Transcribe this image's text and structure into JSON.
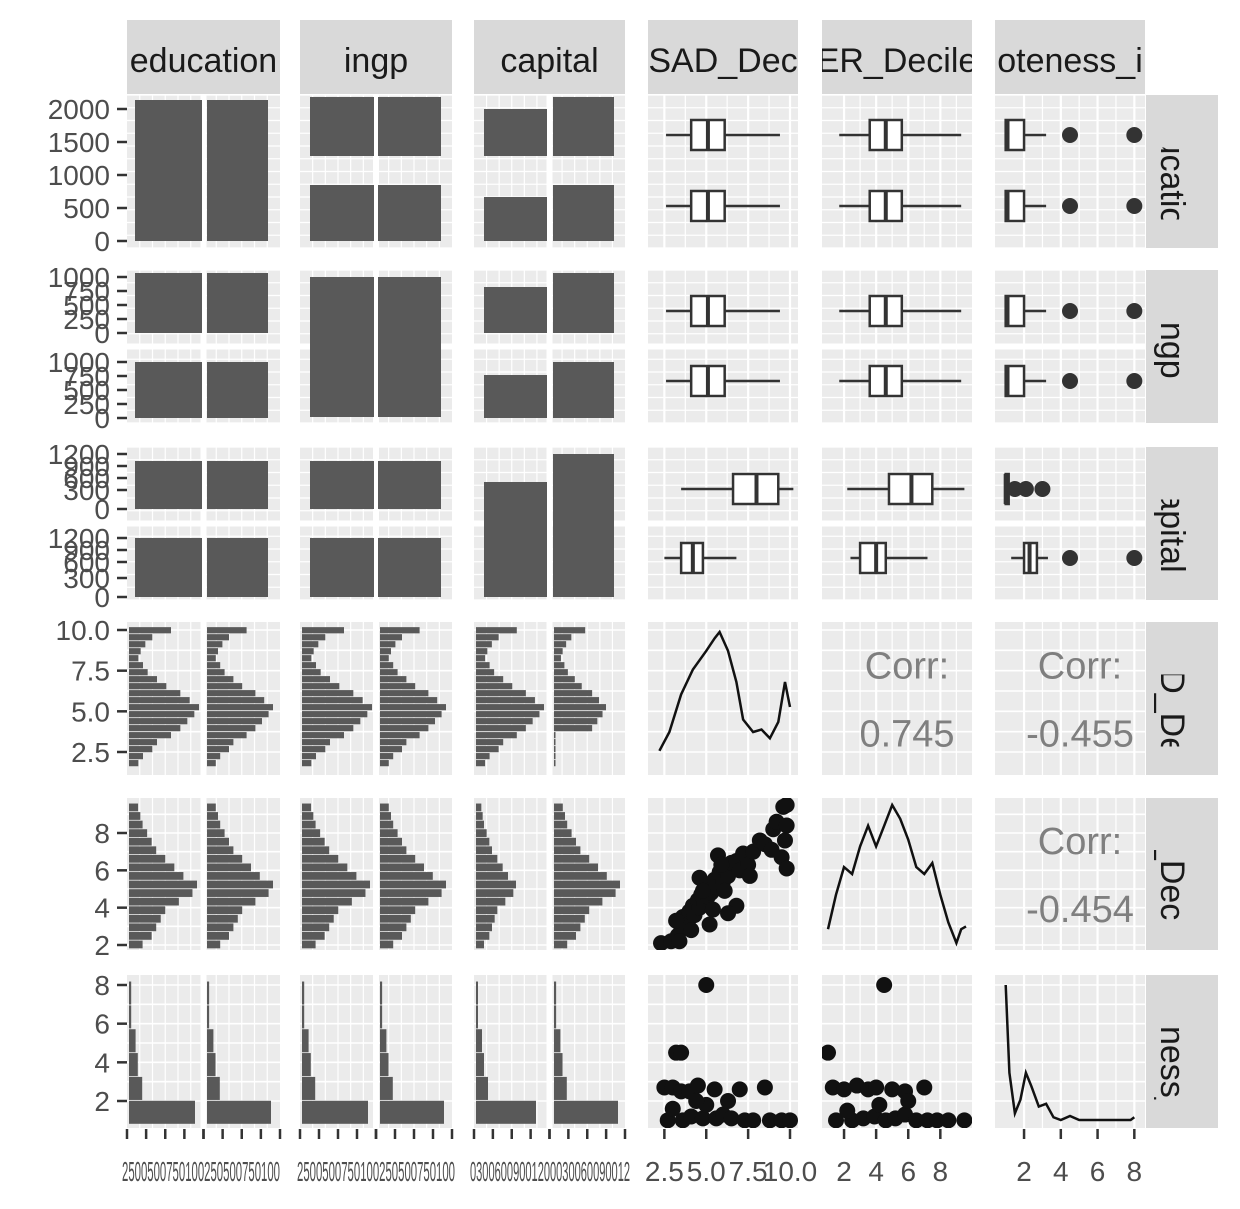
{
  "chart_data": {
    "type": "scatter-matrix",
    "variables": [
      "education",
      "ingp",
      "capital",
      "SAD_Decile",
      "ER_Decile",
      "remoteness_index"
    ],
    "strip_labels": {
      "columns": [
        "education",
        "ingp",
        "capital",
        "SAD_Dec",
        "ER_Decile",
        "oteness_i"
      ],
      "rows": [
        "education",
        "ingp",
        "capital",
        "SAD_Dec",
        "ER_Decile",
        "oteness_i"
      ]
    },
    "y_axis": {
      "education": [
        "2000",
        "1500",
        "1000",
        "500",
        "0"
      ],
      "ingp_upper": [
        "1000",
        "750",
        "500",
        "250",
        "0"
      ],
      "ingp_lower": [
        "1000",
        "750",
        "500",
        "250",
        "0"
      ],
      "capital_upper": [
        "1200",
        "900",
        "600",
        "300",
        "0"
      ],
      "capital_lower": [
        "1200",
        "900",
        "600",
        "300",
        "0"
      ],
      "SAD_Decile": [
        "10.0",
        "7.5",
        "5.0",
        "2.5"
      ],
      "ER_Decile": [
        "8",
        "6",
        "4",
        "2"
      ],
      "remoteness": [
        "8",
        "6",
        "4",
        "2"
      ]
    },
    "x_axis": {
      "col1": [
        "2500",
        "500",
        "750",
        "1000",
        "250",
        "500",
        "750",
        "1000"
      ],
      "col2": [
        "2500",
        "500",
        "750",
        "1000",
        "250",
        "500",
        "750",
        "1000"
      ],
      "col3": [
        "0",
        "300",
        "600",
        "900",
        "1200",
        "0",
        "300",
        "600",
        "900",
        "1200"
      ],
      "SAD_Decile": [
        "2.5",
        "5.0",
        "7.5",
        "10.0"
      ],
      "ER_Decile": [
        "2",
        "4",
        "6",
        "8"
      ],
      "remoteness": [
        "2",
        "4",
        "6",
        "8"
      ]
    },
    "x_axis_rendered": {
      "col1": "2500500750100250500750100",
      "col2": "2500500750100250500750100",
      "col3": "03006009001200030060090012",
      "col4": "2.5 5.0 7.5 10.0",
      "col5": "2 4 6 8",
      "col6": "2 4 6 8"
    },
    "bar_counts": {
      "education_vs_education": [
        2100,
        2100
      ],
      "education_by_ingp": [
        [
          900,
          900
        ],
        [
          900,
          900
        ]
      ],
      "education_by_capital": [
        [
          660,
          880
        ],
        [
          1000,
          1320
        ]
      ]
    },
    "correlations": [
      {
        "pair": [
          "SAD_Decile",
          "ER_Decile"
        ],
        "label": "Corr:",
        "value": "0.745"
      },
      {
        "pair": [
          "SAD_Decile",
          "remoteness_index"
        ],
        "label": "Corr:",
        "value": "-0.455"
      },
      {
        "pair": [
          "ER_Decile",
          "remoteness_index"
        ],
        "label": "Corr:",
        "value": "-0.454"
      }
    ],
    "box_stats": {
      "SAD_by_education": [
        [
          2.6,
          4.1,
          5.1,
          6.1,
          9.4
        ],
        [
          2.6,
          4.1,
          5.1,
          6.1,
          9.4
        ]
      ],
      "ER_by_education": [
        [
          1.7,
          3.6,
          4.6,
          5.6,
          9.3
        ],
        [
          1.7,
          3.6,
          4.6,
          5.6,
          9.3
        ]
      ],
      "rem_by_education": [
        [
          1.0,
          1.0,
          1.1,
          2.0,
          3.2,
          [
            4.5,
            8.0
          ]
        ],
        [
          1.0,
          1.0,
          1.1,
          2.0,
          3.2,
          [
            4.5,
            8.0
          ]
        ]
      ],
      "SAD_by_capital": [
        [
          3.5,
          6.6,
          8.0,
          9.3,
          10.2
        ],
        [
          2.5,
          3.5,
          4.2,
          4.8,
          6.8
        ]
      ],
      "ER_by_capital": [
        [
          2.2,
          4.8,
          6.2,
          7.5,
          9.5
        ],
        [
          2.4,
          3.0,
          4.0,
          4.6,
          7.2
        ]
      ],
      "rem_by_capital": [
        [
          1.0,
          1.0,
          1.0,
          1.1,
          1.1,
          [
            1.5,
            2.1,
            3.0
          ]
        ],
        [
          1.3,
          2.0,
          2.3,
          2.7,
          3.3,
          [
            4.5,
            8.0
          ]
        ]
      ]
    },
    "density_SAD": [
      [
        2.2,
        0.05
      ],
      [
        2.8,
        0.2
      ],
      [
        3.5,
        0.5
      ],
      [
        4.2,
        0.7
      ],
      [
        5.0,
        0.85
      ],
      [
        5.5,
        0.95
      ],
      [
        5.8,
        1.0
      ],
      [
        6.3,
        0.85
      ],
      [
        6.8,
        0.6
      ],
      [
        7.2,
        0.3
      ],
      [
        7.8,
        0.2
      ],
      [
        8.3,
        0.22
      ],
      [
        8.8,
        0.15
      ],
      [
        9.3,
        0.28
      ],
      [
        9.7,
        0.6
      ],
      [
        10.0,
        0.4
      ]
    ],
    "density_ER": [
      [
        1.0,
        0.1
      ],
      [
        1.5,
        0.35
      ],
      [
        2.0,
        0.55
      ],
      [
        2.5,
        0.5
      ],
      [
        3.0,
        0.7
      ],
      [
        3.5,
        0.85
      ],
      [
        4.0,
        0.7
      ],
      [
        4.5,
        0.85
      ],
      [
        5.0,
        1.0
      ],
      [
        5.5,
        0.9
      ],
      [
        6.0,
        0.75
      ],
      [
        6.5,
        0.55
      ],
      [
        7.0,
        0.5
      ],
      [
        7.5,
        0.58
      ],
      [
        8.0,
        0.35
      ],
      [
        8.5,
        0.15
      ],
      [
        9.0,
        0.0
      ],
      [
        9.3,
        0.1
      ],
      [
        9.6,
        0.12
      ]
    ],
    "density_remoteness": [
      [
        1.0,
        1.0
      ],
      [
        1.2,
        0.35
      ],
      [
        1.5,
        0.05
      ],
      [
        1.8,
        0.15
      ],
      [
        2.1,
        0.35
      ],
      [
        2.4,
        0.25
      ],
      [
        2.8,
        0.1
      ],
      [
        3.2,
        0.12
      ],
      [
        3.6,
        0.02
      ],
      [
        4.0,
        0.0
      ],
      [
        4.5,
        0.03
      ],
      [
        5.0,
        0.0
      ],
      [
        6.0,
        0.0
      ],
      [
        7.0,
        0.0
      ],
      [
        7.8,
        0.0
      ],
      [
        8.0,
        0.02
      ]
    ],
    "hist_SAD_counts": [
      4,
      6,
      10,
      12,
      18,
      22,
      25,
      28,
      30,
      26,
      22,
      16,
      12,
      8,
      6,
      4,
      5,
      7,
      10,
      18
    ],
    "hist_ER_counts": [
      6,
      10,
      12,
      14,
      16,
      22,
      28,
      30,
      24,
      20,
      16,
      12,
      10,
      8,
      6,
      5,
      4
    ],
    "hist_remoteness_counts": [
      30,
      6,
      4,
      3,
      1,
      1
    ],
    "scatter_SAD_ER": [
      [
        2.3,
        2.1
      ],
      [
        2.9,
        2.2
      ],
      [
        3.3,
        2.5
      ],
      [
        3.5,
        3.0
      ],
      [
        3.6,
        3.5
      ],
      [
        3.9,
        3.2
      ],
      [
        4.0,
        3.8
      ],
      [
        4.2,
        4.1
      ],
      [
        4.3,
        3.6
      ],
      [
        4.5,
        4.4
      ],
      [
        4.6,
        4.0
      ],
      [
        4.7,
        4.7
      ],
      [
        4.9,
        4.2
      ],
      [
        5.0,
        5.0
      ],
      [
        5.1,
        4.6
      ],
      [
        5.2,
        5.2
      ],
      [
        5.3,
        4.8
      ],
      [
        5.5,
        5.5
      ],
      [
        5.6,
        5.1
      ],
      [
        5.8,
        5.9
      ],
      [
        6.0,
        5.4
      ],
      [
        6.2,
        6.1
      ],
      [
        6.3,
        5.7
      ],
      [
        6.5,
        6.4
      ],
      [
        6.8,
        6.5
      ],
      [
        7.0,
        6.0
      ],
      [
        7.2,
        6.9
      ],
      [
        7.5,
        6.3
      ],
      [
        7.8,
        7.0
      ],
      [
        8.2,
        7.6
      ],
      [
        8.5,
        7.4
      ],
      [
        9.0,
        8.2
      ],
      [
        9.2,
        8.6
      ],
      [
        9.6,
        9.4
      ],
      [
        9.8,
        9.5
      ],
      [
        9.8,
        8.4
      ],
      [
        9.7,
        7.6
      ],
      [
        9.5,
        6.7
      ],
      [
        9.8,
        6.1
      ],
      [
        6.8,
        4.1
      ],
      [
        6.3,
        3.7
      ],
      [
        5.2,
        3.1
      ],
      [
        4.1,
        2.8
      ],
      [
        3.2,
        3.3
      ],
      [
        4.6,
        5.6
      ],
      [
        5.7,
        6.8
      ],
      [
        8.9,
        7.1
      ],
      [
        7.6,
        5.7
      ],
      [
        6.1,
        4.9
      ],
      [
        5.4,
        3.9
      ],
      [
        4.8,
        4.9
      ],
      [
        5.9,
        6.3
      ],
      [
        3.4,
        2.2
      ]
    ],
    "scatter_SAD_rem": [
      [
        3.2,
        4.5
      ],
      [
        3.5,
        4.5
      ],
      [
        5.0,
        8.0
      ],
      [
        2.5,
        2.7
      ],
      [
        3.0,
        2.7
      ],
      [
        3.5,
        2.5
      ],
      [
        4.0,
        2.5
      ],
      [
        4.5,
        2.8
      ],
      [
        5.5,
        2.6
      ],
      [
        7.0,
        2.6
      ],
      [
        8.5,
        2.7
      ],
      [
        2.7,
        1.0
      ],
      [
        3.6,
        1.0
      ],
      [
        4.1,
        1.2
      ],
      [
        4.8,
        1.1
      ],
      [
        5.6,
        1.1
      ],
      [
        6.0,
        1.3
      ],
      [
        6.5,
        1.1
      ],
      [
        7.3,
        1.0
      ],
      [
        7.8,
        1.0
      ],
      [
        8.8,
        1.0
      ],
      [
        9.5,
        1.0
      ],
      [
        10.0,
        1.0
      ],
      [
        5.0,
        1.8
      ],
      [
        6.3,
        2.0
      ],
      [
        3.0,
        1.6
      ],
      [
        4.4,
        2.0
      ]
    ],
    "scatter_ER_rem": [
      [
        1.0,
        4.5
      ],
      [
        4.5,
        8.0
      ],
      [
        1.3,
        2.7
      ],
      [
        2.0,
        2.6
      ],
      [
        2.8,
        2.8
      ],
      [
        3.5,
        2.6
      ],
      [
        4.0,
        2.7
      ],
      [
        5.0,
        2.6
      ],
      [
        5.8,
        2.5
      ],
      [
        7.0,
        2.7
      ],
      [
        1.5,
        1.0
      ],
      [
        2.5,
        1.0
      ],
      [
        3.2,
        1.1
      ],
      [
        3.9,
        1.2
      ],
      [
        4.6,
        1.0
      ],
      [
        5.2,
        1.1
      ],
      [
        5.8,
        1.3
      ],
      [
        6.5,
        1.0
      ],
      [
        7.2,
        1.0
      ],
      [
        7.8,
        1.0
      ],
      [
        8.5,
        1.0
      ],
      [
        9.5,
        1.0
      ],
      [
        6.0,
        2.0
      ],
      [
        4.2,
        1.8
      ],
      [
        2.2,
        1.5
      ]
    ]
  }
}
